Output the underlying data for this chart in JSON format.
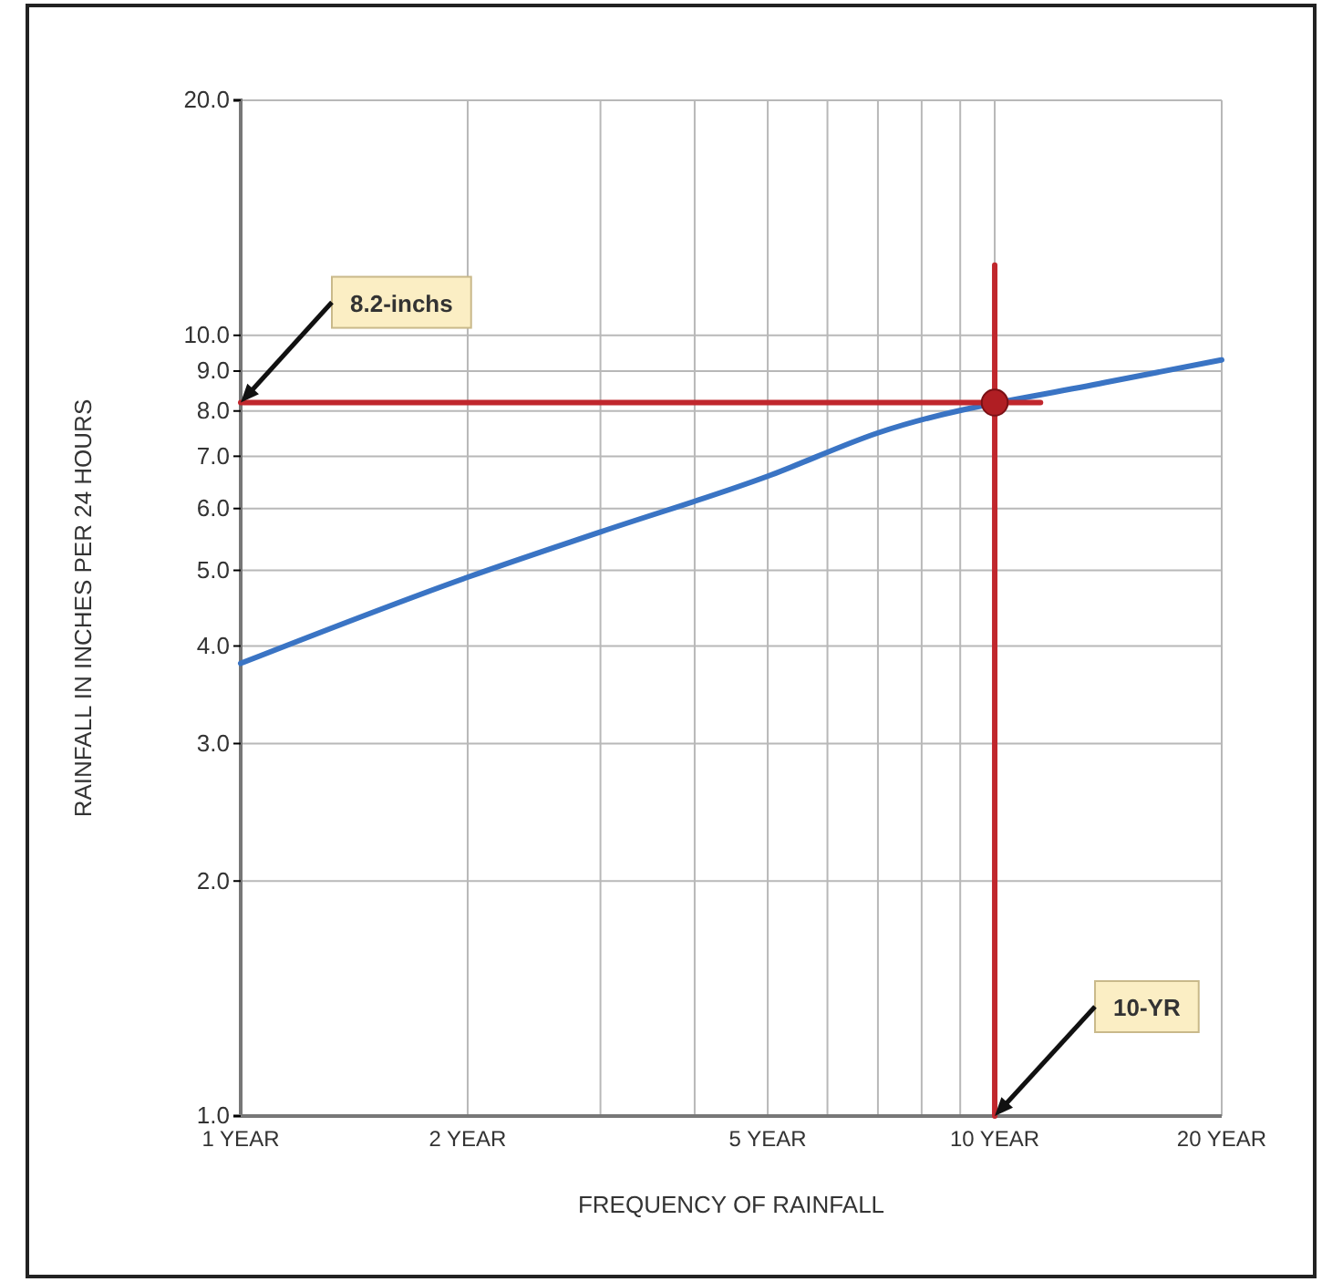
{
  "chart_data": {
    "type": "line",
    "xlabel": "FREQUENCY OF RAINFALL",
    "ylabel": "RAINFALL IN INCHES PER 24 HOURS",
    "log": "xy",
    "grid": true,
    "marker": "none",
    "line_style": "solid",
    "xlim": [
      1,
      20
    ],
    "ylim": [
      1,
      20
    ],
    "xticks": [
      {
        "value": 1,
        "label": "1 YEAR"
      },
      {
        "value": 2,
        "label": "2 YEAR"
      },
      {
        "value": 3,
        "label": null
      },
      {
        "value": 4,
        "label": null
      },
      {
        "value": 5,
        "label": "5 YEAR"
      },
      {
        "value": 6,
        "label": null
      },
      {
        "value": 7,
        "label": null
      },
      {
        "value": 8,
        "label": null
      },
      {
        "value": 9,
        "label": null
      },
      {
        "value": 10,
        "label": "10 YEAR"
      },
      {
        "value": 20,
        "label": "20 YEAR"
      }
    ],
    "yticks": [
      {
        "value": 1,
        "label": "1.0"
      },
      {
        "value": 2,
        "label": "2.0"
      },
      {
        "value": 3,
        "label": "3.0"
      },
      {
        "value": 4,
        "label": "4.0"
      },
      {
        "value": 5,
        "label": "5.0"
      },
      {
        "value": 6,
        "label": "6.0"
      },
      {
        "value": 7,
        "label": "7.0"
      },
      {
        "value": 8,
        "label": "8.0"
      },
      {
        "value": 9,
        "label": "9.0"
      },
      {
        "value": 10,
        "label": "10.0"
      },
      {
        "value": 20,
        "label": "20.0"
      }
    ],
    "series": [
      {
        "color": "#3a74c4",
        "x": [
          1,
          2,
          3,
          5,
          7,
          14,
          20
        ],
        "values": [
          3.8,
          4.9,
          5.6,
          6.6,
          7.5,
          8.7,
          9.3
        ]
      },
      {
        "color": "#c0272d",
        "x": [
          1,
          11.5
        ],
        "values": [
          8.2,
          8.2
        ]
      },
      {
        "color": "#c0272d",
        "x": [
          10,
          10
        ],
        "values": [
          1,
          12.3
        ]
      },
      {
        "type": "scatter",
        "color": "#b01e23",
        "marker": "circle",
        "x": [
          10
        ],
        "values": [
          8.2
        ]
      }
    ],
    "annotations": [
      {
        "text": "8.2-inchs",
        "x": 1,
        "y": 8.2
      },
      {
        "text": "10-YR",
        "x": 10,
        "y": 1
      }
    ]
  }
}
